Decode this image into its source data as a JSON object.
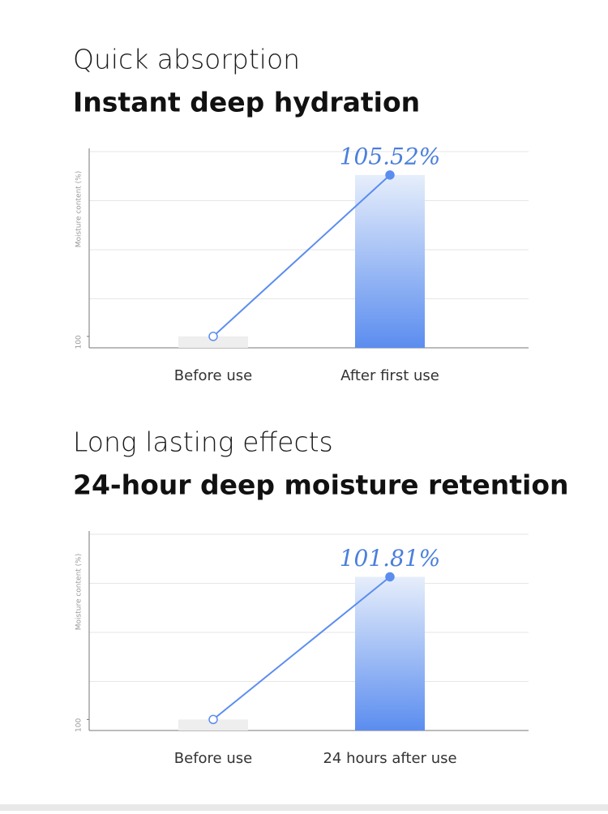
{
  "chart_data": [
    {
      "type": "bar-line",
      "title": "Quick absorption",
      "subtitle": "Instant deep hydration",
      "y_label": "Moisture content (%)",
      "categories": [
        "Before use",
        "After first use"
      ],
      "values": [
        100,
        105.52
      ],
      "value_labels": [
        null,
        "105.52%"
      ],
      "ylim": [
        99.61,
        106.32
      ],
      "yticks": [
        100
      ],
      "grid": true,
      "bar_colors": [
        "#eeeeee",
        "#5b8def"
      ],
      "line_color": "#5b8def"
    },
    {
      "type": "bar-line",
      "title": "Long lasting effects",
      "subtitle": "24-hour deep moisture retention",
      "y_label": "Moisture content (%)",
      "categories": [
        "Before use",
        "24 hours after use"
      ],
      "values": [
        100,
        101.81
      ],
      "value_labels": [
        null,
        "101.81%"
      ],
      "ylim": [
        99.86,
        102.35
      ],
      "yticks": [
        100
      ],
      "grid": true,
      "bar_colors": [
        "#eeeeee",
        "#5b8def"
      ],
      "line_color": "#5b8def"
    }
  ]
}
